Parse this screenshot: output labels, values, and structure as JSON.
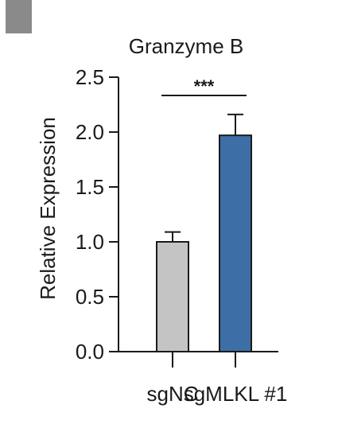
{
  "panel_label_color": "#8a8a8a",
  "chart_data": {
    "type": "bar",
    "title": "Granzyme B",
    "ylabel": "Relative Expression",
    "xlabel": "",
    "categories": [
      "sgNC",
      "sgMLKL #1"
    ],
    "values": [
      1.0,
      1.97
    ],
    "errors": [
      0.09,
      0.19
    ],
    "colors": [
      "#c4c4c4",
      "#3d6fa6"
    ],
    "edge_color": "#1a1a1a",
    "ylim": [
      0,
      2.5
    ],
    "yticks": [
      0.0,
      0.5,
      1.0,
      1.5,
      2.0,
      2.5
    ],
    "ytick_labels": [
      "0.0",
      "0.5",
      "1.0",
      "1.5",
      "2.0",
      "2.5"
    ],
    "grid": false,
    "significance": {
      "label": "***",
      "between": [
        0,
        1
      ]
    }
  }
}
